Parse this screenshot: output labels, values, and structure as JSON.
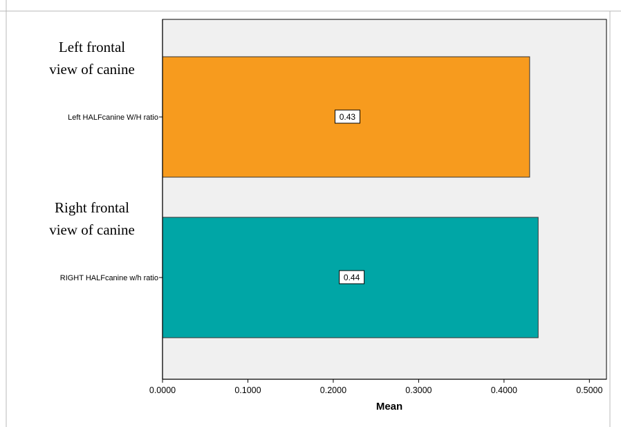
{
  "chart_data": {
    "type": "bar",
    "orientation": "horizontal",
    "categories": [
      "Left HALFcanine W/H ratio",
      "RIGHT HALFcanine w/h ratio"
    ],
    "values": [
      0.43,
      0.44
    ],
    "data_labels": [
      "0.43",
      "0.44"
    ],
    "colors": [
      "#F79B1E",
      "#00A6A6"
    ],
    "group_labels": [
      [
        "Left frontal",
        "view of canine"
      ],
      [
        "Right frontal",
        "view of canine"
      ]
    ],
    "xlabel": "Mean",
    "ylabel": "",
    "xlim": [
      0,
      0.52
    ],
    "xticks": [
      0,
      0.1,
      0.2,
      0.3,
      0.4,
      0.5
    ],
    "xtick_labels": [
      "0.0000",
      "0.1000",
      "0.2000",
      "0.3000",
      "0.4000",
      "0.5000"
    ],
    "grid": false,
    "plot_background": "#F0F0F0"
  }
}
